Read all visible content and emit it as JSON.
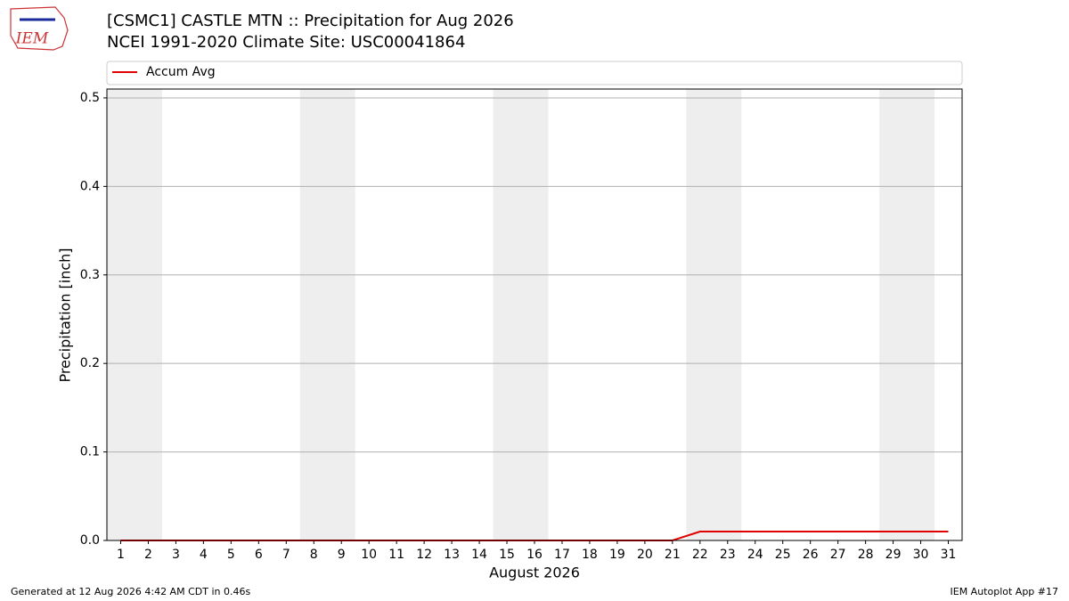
{
  "chart_data": {
    "type": "line",
    "title": "[CSMC1] CASTLE MTN :: Precipitation for Aug 2026",
    "subtitle": "NCEI 1991-2020 Climate Site: USC00041864",
    "x_label": "August 2026",
    "y_label": "Precipitation [inch]",
    "x": [
      1,
      2,
      3,
      4,
      5,
      6,
      7,
      8,
      9,
      10,
      11,
      12,
      13,
      14,
      15,
      16,
      17,
      18,
      19,
      20,
      21,
      22,
      23,
      24,
      25,
      26,
      27,
      28,
      29,
      30,
      31
    ],
    "series": [
      {
        "name": "Accum Avg",
        "color": "#e00000",
        "values": [
          0,
          0,
          0,
          0,
          0,
          0,
          0,
          0,
          0,
          0,
          0,
          0,
          0,
          0,
          0,
          0,
          0,
          0,
          0,
          0,
          0,
          0.01,
          0.01,
          0.01,
          0.01,
          0.01,
          0.01,
          0.01,
          0.01,
          0.01,
          0.01
        ]
      }
    ],
    "xlim": [
      0.5,
      31.5
    ],
    "xticks": [
      1,
      2,
      3,
      4,
      5,
      6,
      7,
      8,
      9,
      10,
      11,
      12,
      13,
      14,
      15,
      16,
      17,
      18,
      19,
      20,
      21,
      22,
      23,
      24,
      25,
      26,
      27,
      28,
      29,
      30,
      31
    ],
    "ylim": [
      0,
      0.51
    ],
    "yticks": [
      {
        "value": 0,
        "label": "0.0"
      },
      0.1,
      0.2,
      0.3,
      0.4,
      0.5
    ],
    "grid": true,
    "legend": "top",
    "footer_left": "Generated at 12 Aug 2026 4:42 AM CDT in 0.46s",
    "footer_right": "IEM Autoplot App #17",
    "logo_text": "IEM"
  }
}
